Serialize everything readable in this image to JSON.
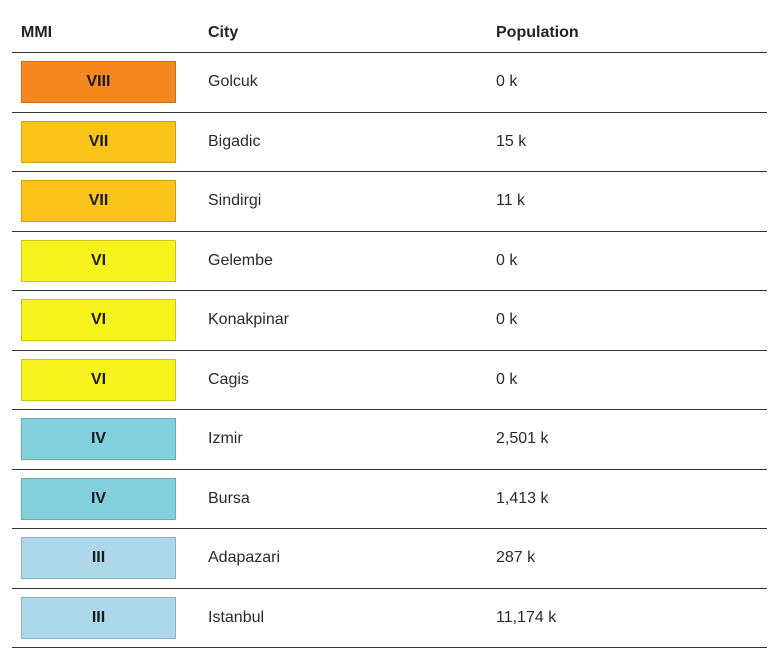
{
  "header": {
    "mmi": "MMI",
    "city": "City",
    "population": "Population"
  },
  "rows": [
    {
      "mmi": "VIII",
      "city": "Golcuk",
      "population": "0 k",
      "color": "#f5891f"
    },
    {
      "mmi": "VII",
      "city": "Bigadic",
      "population": "15 k",
      "color": "#fbc41b"
    },
    {
      "mmi": "VII",
      "city": "Sindirgi",
      "population": "11 k",
      "color": "#fbc41b"
    },
    {
      "mmi": "VI",
      "city": "Gelembe",
      "population": "0 k",
      "color": "#f7f31f"
    },
    {
      "mmi": "VI",
      "city": "Konakpinar",
      "population": "0 k",
      "color": "#f7f31f"
    },
    {
      "mmi": "VI",
      "city": "Cagis",
      "population": "0 k",
      "color": "#f7f31f"
    },
    {
      "mmi": "IV",
      "city": "Izmir",
      "population": "2,501 k",
      "color": "#82d0db"
    },
    {
      "mmi": "IV",
      "city": "Bursa",
      "population": "1,413 k",
      "color": "#82d0db"
    },
    {
      "mmi": "III",
      "city": "Adapazari",
      "population": "287 k",
      "color": "#acd8e9"
    },
    {
      "mmi": "III",
      "city": "Istanbul",
      "population": "11,174 k",
      "color": "#acd8e9"
    }
  ]
}
